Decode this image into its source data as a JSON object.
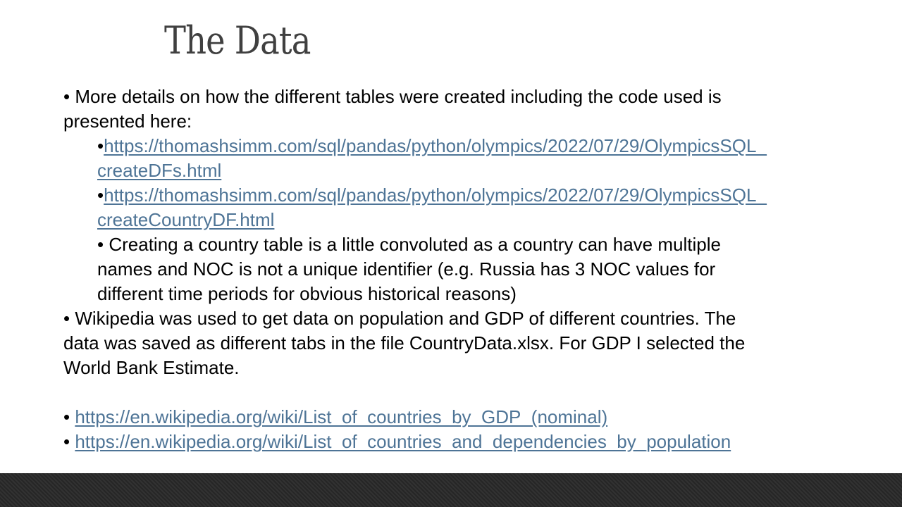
{
  "slide": {
    "title": "The Data",
    "bullet_char": "•",
    "para1_line1": "More details on how the different tables were created including the code used is",
    "para1_line2": "presented here:",
    "link1_line1": "https://thomashsimm.com/sql/pandas/python/olympics/2022/07/29/OlympicsSQL_",
    "link1_line2": "createDFs.html",
    "link2_line1": "https://thomashsimm.com/sql/pandas/python/olympics/2022/07/29/OlympicsSQL_",
    "link2_line2": "createCountryDF.html",
    "note_line1": "Creating a country table is a little convoluted as a country can have multiple",
    "note_line2": "names and NOC is not a unique identifier (e.g. Russia has 3 NOC values for",
    "note_line3": "different time periods for obvious historical reasons)",
    "para2_line1": "Wikipedia was used to get data on population and GDP of different countries. The",
    "para2_line2": "data was saved as different tabs in the file CountryData.xlsx.  For GDP I selected the",
    "para2_line3": "World Bank Estimate.",
    "link3": "https://en.wikipedia.org/wiki/List_of_countries_by_GDP_(nominal)",
    "link4": "https://en.wikipedia.org/wiki/List_of_countries_and_dependencies_by_population"
  },
  "colors": {
    "title": "#404040",
    "text": "#000000",
    "link": "#4e7496",
    "footer": "#2c2c2c"
  }
}
